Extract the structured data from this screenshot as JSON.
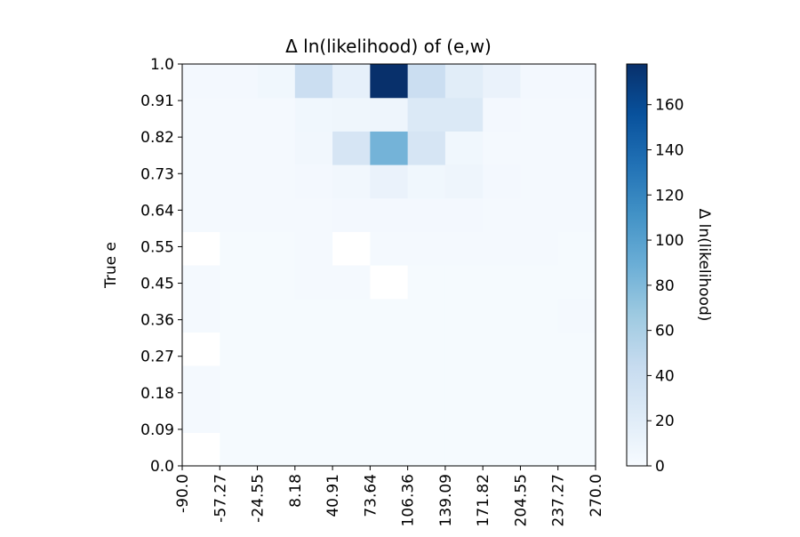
{
  "chart_data": {
    "type": "heatmap",
    "title": "Δ ln(likelihood) of (e,w)",
    "xlabel": "",
    "ylabel": "True e",
    "x_ticks": [
      "-90.0",
      "-57.27",
      "-24.55",
      "8.18",
      "40.91",
      "73.64",
      "106.36",
      "139.09",
      "171.82",
      "204.55",
      "237.27",
      "270.0"
    ],
    "y_ticks": [
      "0.0",
      "0.09",
      "0.18",
      "0.27",
      "0.36",
      "0.45",
      "0.55",
      "0.64",
      "0.73",
      "0.82",
      "0.91",
      "1.0"
    ],
    "colorbar": {
      "label": "Δ ln(likelihood)",
      "ticks": [
        0,
        20,
        40,
        60,
        80,
        100,
        120,
        140,
        160
      ],
      "vmin": 0,
      "vmax": 178,
      "colormap": "Blues"
    },
    "values": [
      [
        null,
        2,
        2,
        2,
        2,
        2,
        2,
        2,
        2,
        2,
        2
      ],
      [
        3,
        2,
        2,
        2,
        2,
        2,
        2,
        2,
        2,
        2,
        2
      ],
      [
        3,
        2,
        2,
        2,
        2,
        2,
        2,
        2,
        2,
        2,
        2
      ],
      [
        null,
        2,
        2,
        2,
        2,
        2,
        2,
        2,
        2,
        2,
        2
      ],
      [
        3,
        2,
        2,
        2,
        2,
        2,
        2,
        2,
        2,
        2,
        3
      ],
      [
        3,
        2,
        2,
        3,
        3,
        null,
        2,
        2,
        2,
        2,
        2
      ],
      [
        null,
        2,
        2,
        3,
        null,
        3,
        3,
        3,
        3,
        3,
        2
      ],
      [
        3,
        3,
        3,
        3,
        4,
        4,
        4,
        4,
        3,
        3,
        3
      ],
      [
        3,
        3,
        3,
        4,
        5,
        12,
        6,
        8,
        4,
        3,
        3
      ],
      [
        3,
        3,
        3,
        5,
        30,
        85,
        30,
        6,
        3,
        3,
        3
      ],
      [
        3,
        3,
        3,
        6,
        7,
        8,
        25,
        25,
        4,
        3,
        3
      ],
      [
        4,
        4,
        6,
        40,
        15,
        178,
        40,
        20,
        12,
        4,
        4
      ]
    ]
  }
}
